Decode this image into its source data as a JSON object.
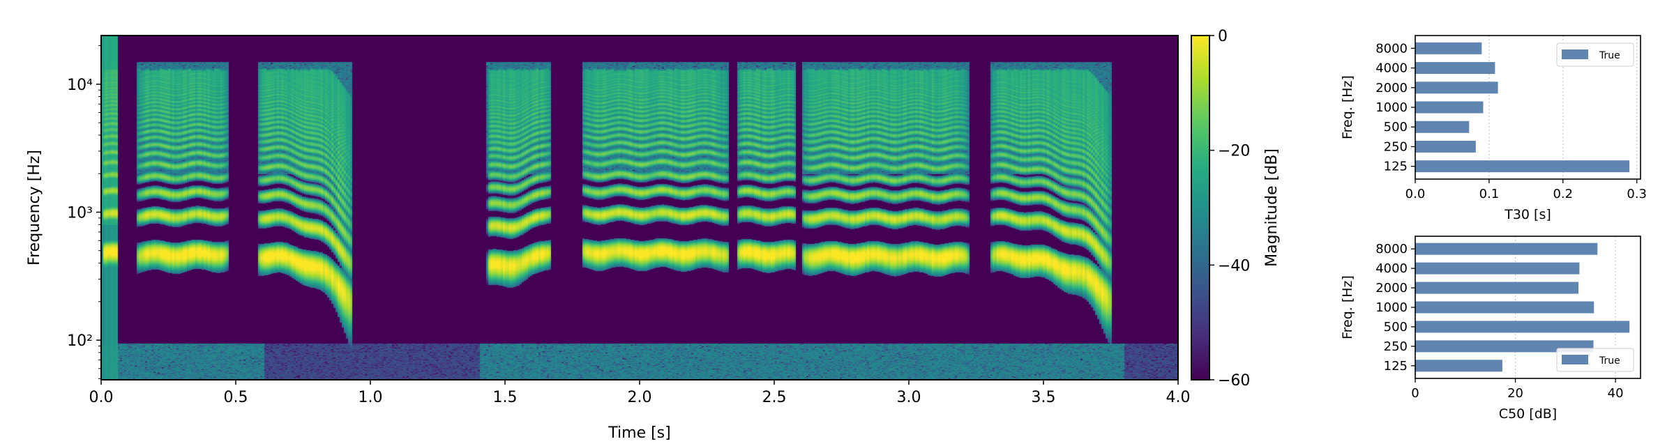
{
  "chart_data": [
    {
      "type": "heatmap",
      "xlabel": "Time [s]",
      "ylabel": "Frequency [Hz]",
      "xlim": [
        0.0,
        4.0
      ],
      "ylim": [
        49,
        24000
      ],
      "yscale": "log",
      "xticks": [
        "0.0",
        "0.5",
        "1.0",
        "1.5",
        "2.0",
        "2.5",
        "3.0",
        "3.5",
        "4.0"
      ],
      "yticks": [
        {
          "value": 100,
          "label": "10²"
        },
        {
          "value": 1000,
          "label": "10³"
        },
        {
          "value": 10000,
          "label": "10⁴"
        }
      ],
      "colormap": "viridis",
      "colorbar": {
        "label": "Magnitude [dB]",
        "range": [
          -60,
          0
        ],
        "ticks": [
          "0",
          "−20",
          "−40",
          "−60"
        ]
      }
    },
    {
      "type": "bar",
      "orientation": "horizontal",
      "categories": [
        "125",
        "250",
        "500",
        "1000",
        "2000",
        "4000",
        "8000"
      ],
      "series": [
        {
          "name": "True",
          "values": [
            0.29,
            0.082,
            0.073,
            0.092,
            0.112,
            0.108,
            0.09
          ]
        }
      ],
      "xlabel": "T30 [s]",
      "ylabel": "Freq. [Hz]",
      "xlim": [
        0,
        0.305
      ],
      "xticks": [
        "0.0",
        "0.1",
        "0.2",
        "0.3"
      ],
      "grid": "x dotted",
      "legend": "top-right",
      "color": "#5f85b0"
    },
    {
      "type": "bar",
      "orientation": "horizontal",
      "categories": [
        "125",
        "250",
        "500",
        "1000",
        "2000",
        "4000",
        "8000"
      ],
      "series": [
        {
          "name": "True",
          "values": [
            17.4,
            35.6,
            42.8,
            35.7,
            32.6,
            32.8,
            36.4
          ]
        }
      ],
      "xlabel": "C50 [dB]",
      "ylabel": "Freq. [Hz]",
      "xlim": [
        0,
        45
      ],
      "xticks": [
        "0",
        "20",
        "40"
      ],
      "grid": "x dotted",
      "legend": "lower-right",
      "color": "#5f85b0"
    }
  ]
}
